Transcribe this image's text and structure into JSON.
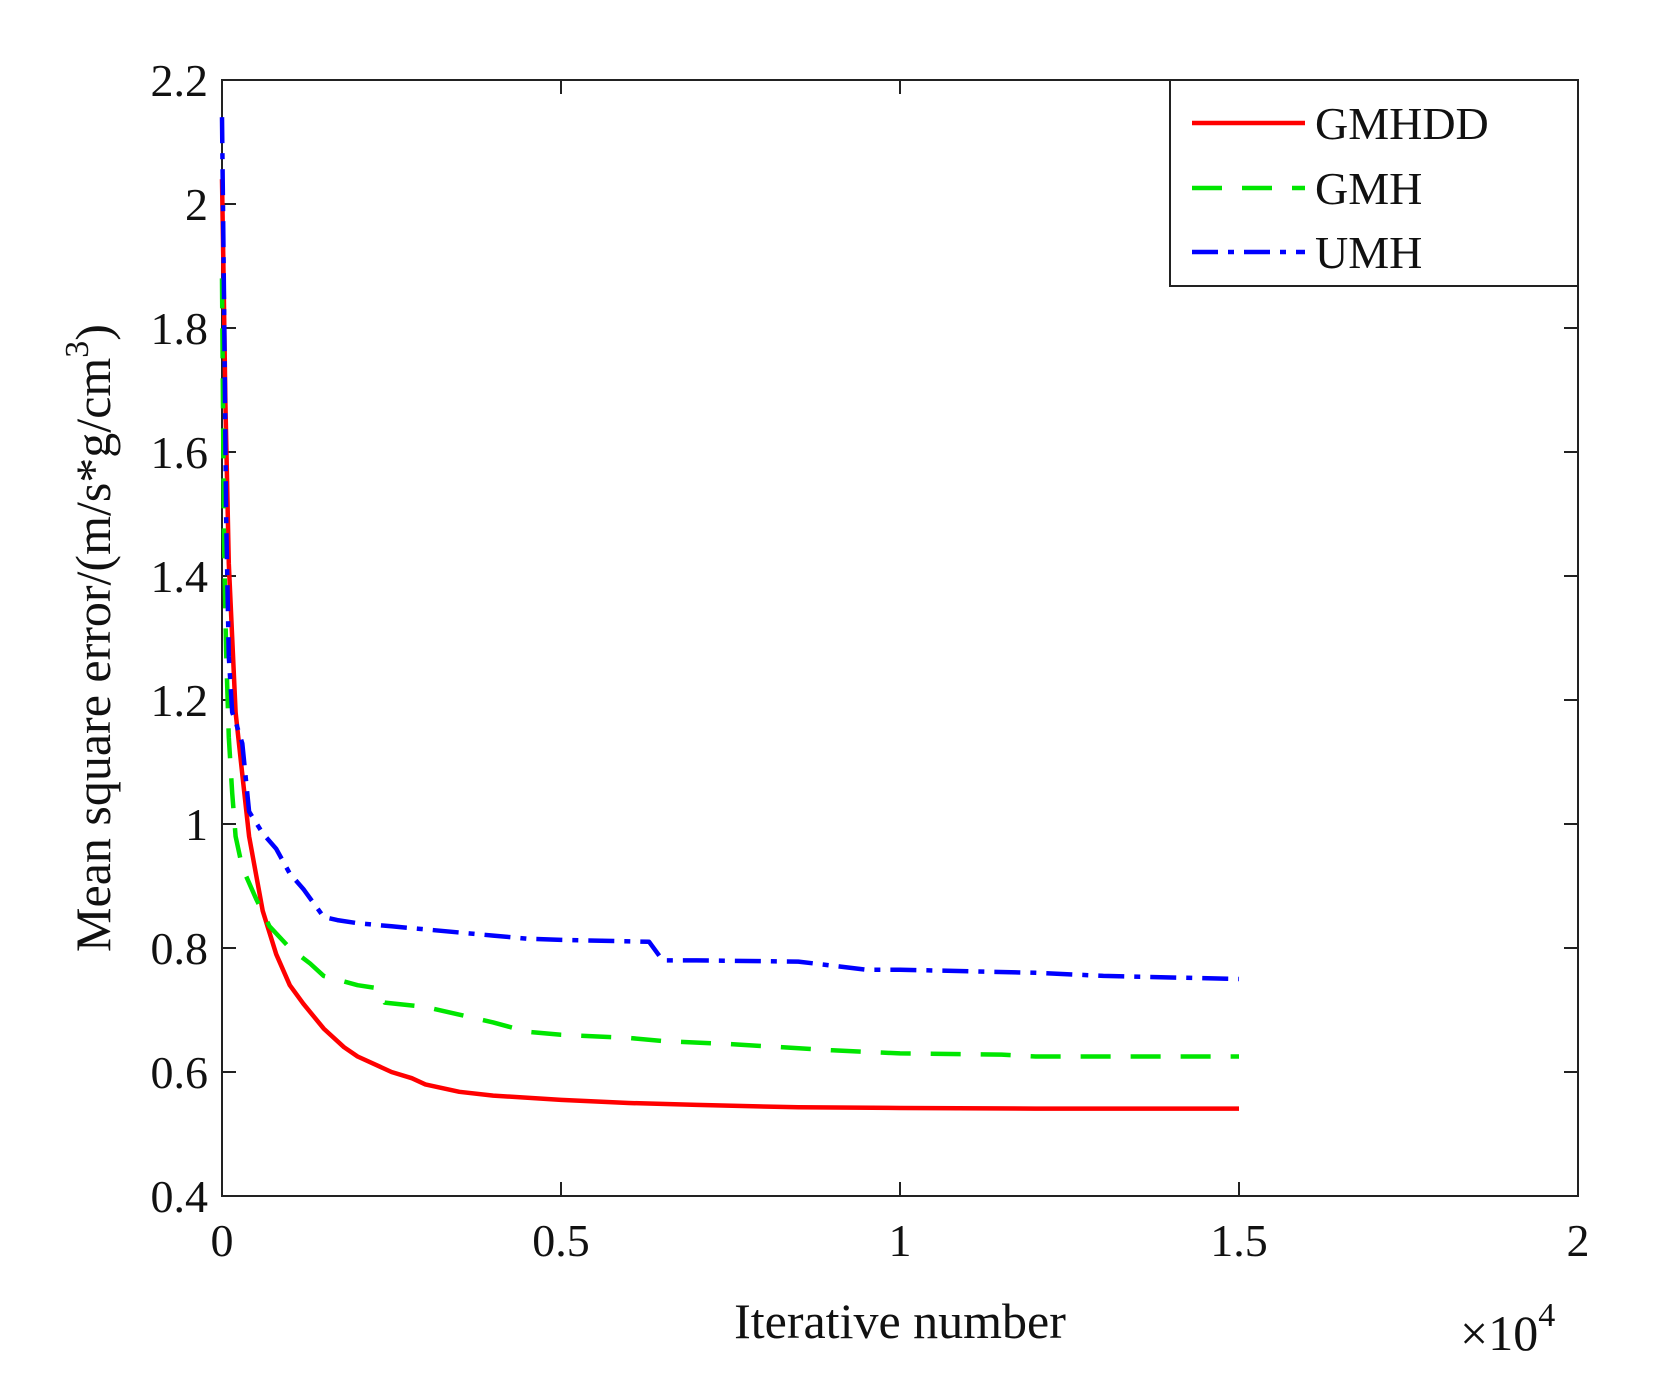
{
  "chart_data": {
    "type": "line",
    "title": "",
    "xlabel": "Iterative number",
    "ylabel_main": "Mean square error/(m/s*g/cm",
    "ylabel_sup": "3",
    "ylabel_close": ")",
    "x_multiplier_prefix": "×10",
    "x_multiplier_exp": "4",
    "xlim": [
      0,
      2
    ],
    "ylim": [
      0.4,
      2.2
    ],
    "xticks": [
      0,
      0.5,
      1,
      1.5,
      2
    ],
    "xtick_labels": [
      "0",
      "0.5",
      "1",
      "1.5",
      "2"
    ],
    "yticks": [
      0.4,
      0.6,
      0.8,
      1.0,
      1.2,
      1.4,
      1.6,
      1.8,
      2.0,
      2.2
    ],
    "ytick_labels": [
      "0.4",
      "0.6",
      "0.8",
      "1",
      "1.2",
      "1.4",
      "1.6",
      "1.8",
      "2",
      "2.2"
    ],
    "legend_position": "top-right",
    "series": [
      {
        "name": "GMHDD",
        "color": "#ff0000",
        "style": "solid",
        "x": [
          0,
          0.002,
          0.005,
          0.01,
          0.015,
          0.02,
          0.03,
          0.04,
          0.05,
          0.06,
          0.08,
          0.1,
          0.12,
          0.15,
          0.18,
          0.2,
          0.25,
          0.28,
          0.3,
          0.35,
          0.4,
          0.5,
          0.6,
          0.7,
          0.85,
          1.0,
          1.2,
          1.5
        ],
        "y": [
          2.04,
          1.9,
          1.68,
          1.42,
          1.3,
          1.18,
          1.08,
          0.98,
          0.92,
          0.86,
          0.79,
          0.74,
          0.71,
          0.67,
          0.64,
          0.625,
          0.6,
          0.59,
          0.58,
          0.568,
          0.562,
          0.555,
          0.55,
          0.547,
          0.543,
          0.542,
          0.541,
          0.541
        ]
      },
      {
        "name": "GMH",
        "color": "#00e600",
        "style": "dashed",
        "x": [
          0,
          0.003,
          0.006,
          0.01,
          0.015,
          0.02,
          0.03,
          0.05,
          0.07,
          0.1,
          0.13,
          0.15,
          0.2,
          0.23,
          0.24,
          0.3,
          0.4,
          0.45,
          0.5,
          0.6,
          0.65,
          0.75,
          0.9,
          1.0,
          1.15,
          1.2,
          1.5
        ],
        "y": [
          1.88,
          1.46,
          1.28,
          1.14,
          1.05,
          0.98,
          0.93,
          0.88,
          0.835,
          0.8,
          0.775,
          0.755,
          0.74,
          0.735,
          0.712,
          0.705,
          0.68,
          0.665,
          0.66,
          0.655,
          0.65,
          0.645,
          0.635,
          0.63,
          0.628,
          0.625,
          0.625
        ]
      },
      {
        "name": "UMH",
        "color": "#0000ff",
        "style": "dashdot",
        "x": [
          0,
          0.003,
          0.006,
          0.01,
          0.015,
          0.02,
          0.03,
          0.04,
          0.06,
          0.08,
          0.1,
          0.12,
          0.15,
          0.17,
          0.2,
          0.25,
          0.3,
          0.4,
          0.45,
          0.5,
          0.55,
          0.63,
          0.65,
          0.7,
          0.85,
          0.95,
          1.0,
          1.2,
          1.3,
          1.5
        ],
        "y": [
          2.14,
          1.85,
          1.5,
          1.27,
          1.18,
          1.165,
          1.13,
          1.02,
          0.985,
          0.96,
          0.92,
          0.895,
          0.85,
          0.845,
          0.84,
          0.835,
          0.83,
          0.82,
          0.815,
          0.813,
          0.812,
          0.81,
          0.78,
          0.78,
          0.778,
          0.765,
          0.765,
          0.76,
          0.755,
          0.75
        ]
      }
    ]
  }
}
